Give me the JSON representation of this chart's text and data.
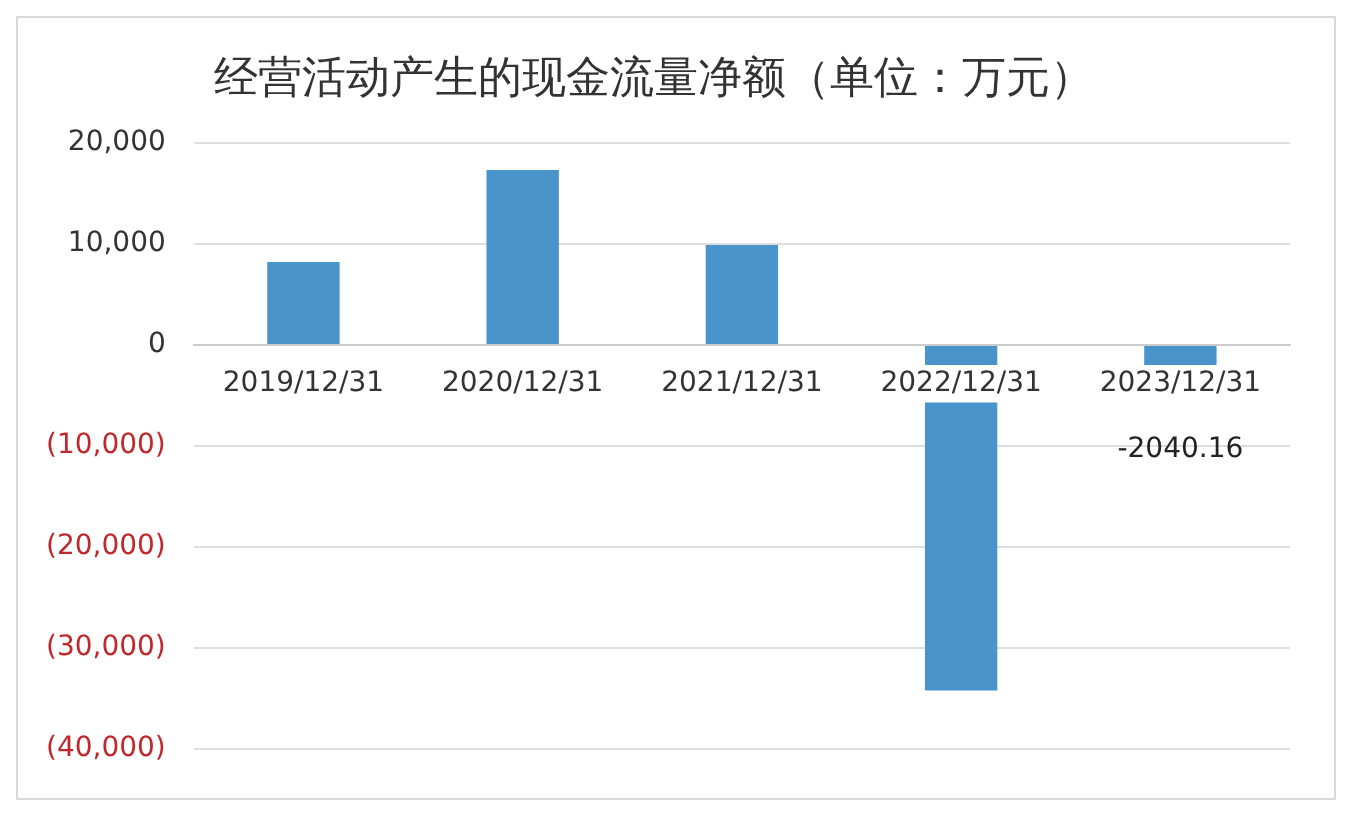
{
  "chart_data": {
    "type": "bar",
    "title": "经营活动产生的现金流量净额（单位：万元）",
    "categories": [
      "2019/12/31",
      "2020/12/31",
      "2021/12/31",
      "2022/12/31",
      "2023/12/31"
    ],
    "values": [
      8200,
      17300,
      9900,
      -34200,
      -2040.16
    ],
    "value_labels": [
      null,
      null,
      null,
      null,
      "-2040.16"
    ],
    "color": "#4a94cc",
    "ylim": [
      -40000,
      20000
    ],
    "yticks": [
      {
        "value": -40000,
        "label": "(40,000)"
      },
      {
        "value": -30000,
        "label": "(30,000)"
      },
      {
        "value": -20000,
        "label": "(20,000)"
      },
      {
        "value": -10000,
        "label": "(10,000)"
      },
      {
        "value": 0,
        "label": "0"
      },
      {
        "value": 10000,
        "label": "10,000"
      },
      {
        "value": 20000,
        "label": "20,000"
      }
    ],
    "grid": "y",
    "legend": false
  }
}
